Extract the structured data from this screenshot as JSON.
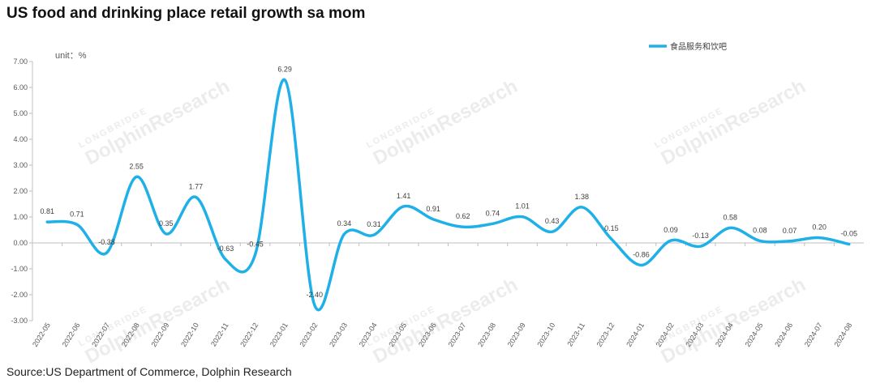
{
  "title": "US food and drinking place retail growth sa mom",
  "source": "Source:US Department of Commerce, Dolphin Research",
  "watermark": {
    "small": "LONGBRIDGE",
    "big": "DolphinResearch"
  },
  "colors": {
    "series": "#1fb0e8",
    "axis": "#bfbfbf",
    "text": "#595959"
  },
  "chart_data": {
    "type": "line",
    "title": "US food and drinking place retail growth sa mom",
    "unit_label": "unit：%",
    "ylim": [
      -3.0,
      7.0
    ],
    "yticks": [
      "7.00",
      "6.00",
      "5.00",
      "4.00",
      "3.00",
      "2.00",
      "1.00",
      "0.00",
      "-1.00",
      "-2.00",
      "-3.00"
    ],
    "x": [
      "2022-05",
      "2022-06",
      "2022-07",
      "2022-08",
      "2022-09",
      "2022-10",
      "2022-11",
      "2022-12",
      "2023-01",
      "2023-02",
      "2023-03",
      "2023-04",
      "2023-05",
      "2023-06",
      "2023-07",
      "2023-08",
      "2023-09",
      "2023-10",
      "2023-11",
      "2023-12",
      "2024-01",
      "2024-02",
      "2024-03",
      "2024-04",
      "2024-05",
      "2024-06",
      "2024-07",
      "2024-08"
    ],
    "series": [
      {
        "name": "食品服务和饮吧",
        "values": [
          0.81,
          0.71,
          -0.38,
          2.55,
          0.35,
          1.77,
          -0.63,
          -0.45,
          6.29,
          -2.4,
          0.34,
          0.31,
          1.41,
          0.91,
          0.62,
          0.74,
          1.01,
          0.43,
          1.38,
          0.15,
          -0.86,
          0.09,
          -0.13,
          0.58,
          0.08,
          0.07,
          0.2,
          -0.05
        ],
        "labels": [
          "0.81",
          "0.71",
          "-0.38",
          "2.55",
          "0.35",
          "1.77",
          "-0.63",
          "-0.45",
          "6.29",
          "-2.40",
          "0.34",
          "0.31",
          "1.41",
          "0.91",
          "0.62",
          "0.74",
          "1.01",
          "0.43",
          "1.38",
          "0.15",
          "-0.86",
          "0.09",
          "-0.13",
          "0.58",
          "0.08",
          "0.07",
          "0.20",
          "-0.05"
        ]
      }
    ],
    "legend_position": "top-right",
    "grid": false
  }
}
